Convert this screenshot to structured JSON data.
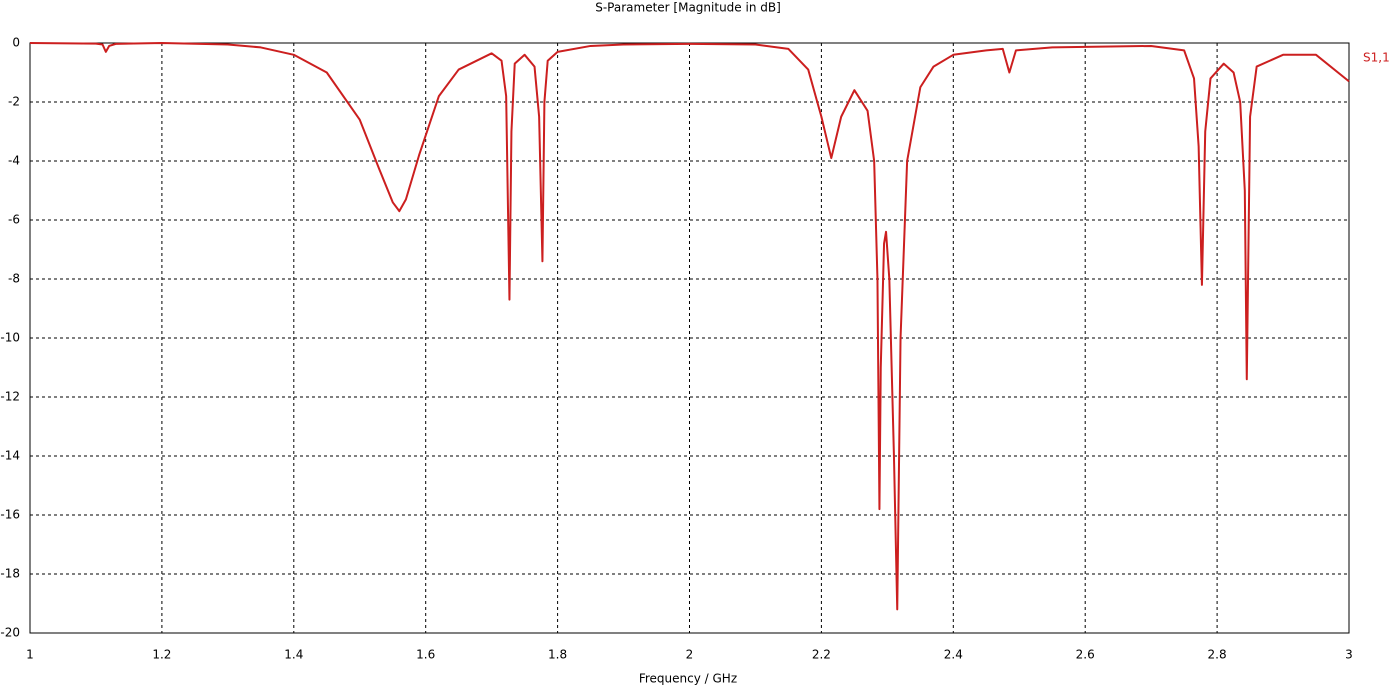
{
  "chart_data": {
    "type": "line",
    "title": "S-Parameter [Magnitude in dB]",
    "x_label": "Frequency / GHz",
    "x": [
      1,
      1.1,
      1.11,
      1.115,
      1.12,
      1.13,
      1.2,
      1.3,
      1.35,
      1.4,
      1.45,
      1.5,
      1.53,
      1.55,
      1.56,
      1.57,
      1.59,
      1.62,
      1.65,
      1.7,
      1.715,
      1.722,
      1.727,
      1.73,
      1.735,
      1.75,
      1.765,
      1.772,
      1.777,
      1.78,
      1.785,
      1.8,
      1.85,
      1.9,
      2,
      2.1,
      2.15,
      2.18,
      2.2,
      2.215,
      2.23,
      2.25,
      2.27,
      2.28,
      2.285,
      2.288,
      2.29,
      2.295,
      2.298,
      2.303,
      2.31,
      2.315,
      2.32,
      2.33,
      2.35,
      2.37,
      2.4,
      2.45,
      2.475,
      2.485,
      2.495,
      2.55,
      2.7,
      2.75,
      2.765,
      2.772,
      2.777,
      2.782,
      2.79,
      2.81,
      2.825,
      2.835,
      2.842,
      2.845,
      2.85,
      2.86,
      2.9,
      2.95,
      3
    ],
    "series": [
      {
        "name": "S1,1",
        "color": "#cc1f1f",
        "values": [
          0,
          -0.02,
          -0.05,
          -0.3,
          -0.1,
          -0.03,
          0,
          -0.05,
          -0.15,
          -0.4,
          -1.0,
          -2.6,
          -4.3,
          -5.4,
          -5.7,
          -5.3,
          -3.8,
          -1.8,
          -0.9,
          -0.35,
          -0.6,
          -1.8,
          -8.7,
          -3,
          -0.7,
          -0.4,
          -0.8,
          -2.5,
          -7.4,
          -2,
          -0.6,
          -0.3,
          -0.1,
          -0.05,
          -0.03,
          -0.05,
          -0.2,
          -0.9,
          -2.5,
          -3.9,
          -2.5,
          -1.6,
          -2.3,
          -4,
          -8,
          -15.8,
          -11,
          -6.8,
          -6.4,
          -8,
          -14,
          -19.2,
          -10,
          -4,
          -1.5,
          -0.8,
          -0.4,
          -0.25,
          -0.2,
          -1.0,
          -0.25,
          -0.15,
          -0.1,
          -0.25,
          -1.2,
          -3.5,
          -8.2,
          -3,
          -1.2,
          -0.7,
          -1.0,
          -2.0,
          -5,
          -11.4,
          -2.5,
          -0.8,
          -0.4,
          -0.4,
          -1.3
        ]
      }
    ],
    "xlim": [
      1,
      3
    ],
    "ylim": [
      -20,
      0
    ],
    "xticks": [
      1,
      1.2,
      1.4,
      1.6,
      1.8,
      2,
      2.2,
      2.4,
      2.6,
      2.8,
      3
    ],
    "yticks": [
      0,
      -2,
      -4,
      -6,
      -8,
      -10,
      -12,
      -14,
      -16,
      -18,
      -20
    ],
    "grid": true,
    "legend": "top-right"
  }
}
